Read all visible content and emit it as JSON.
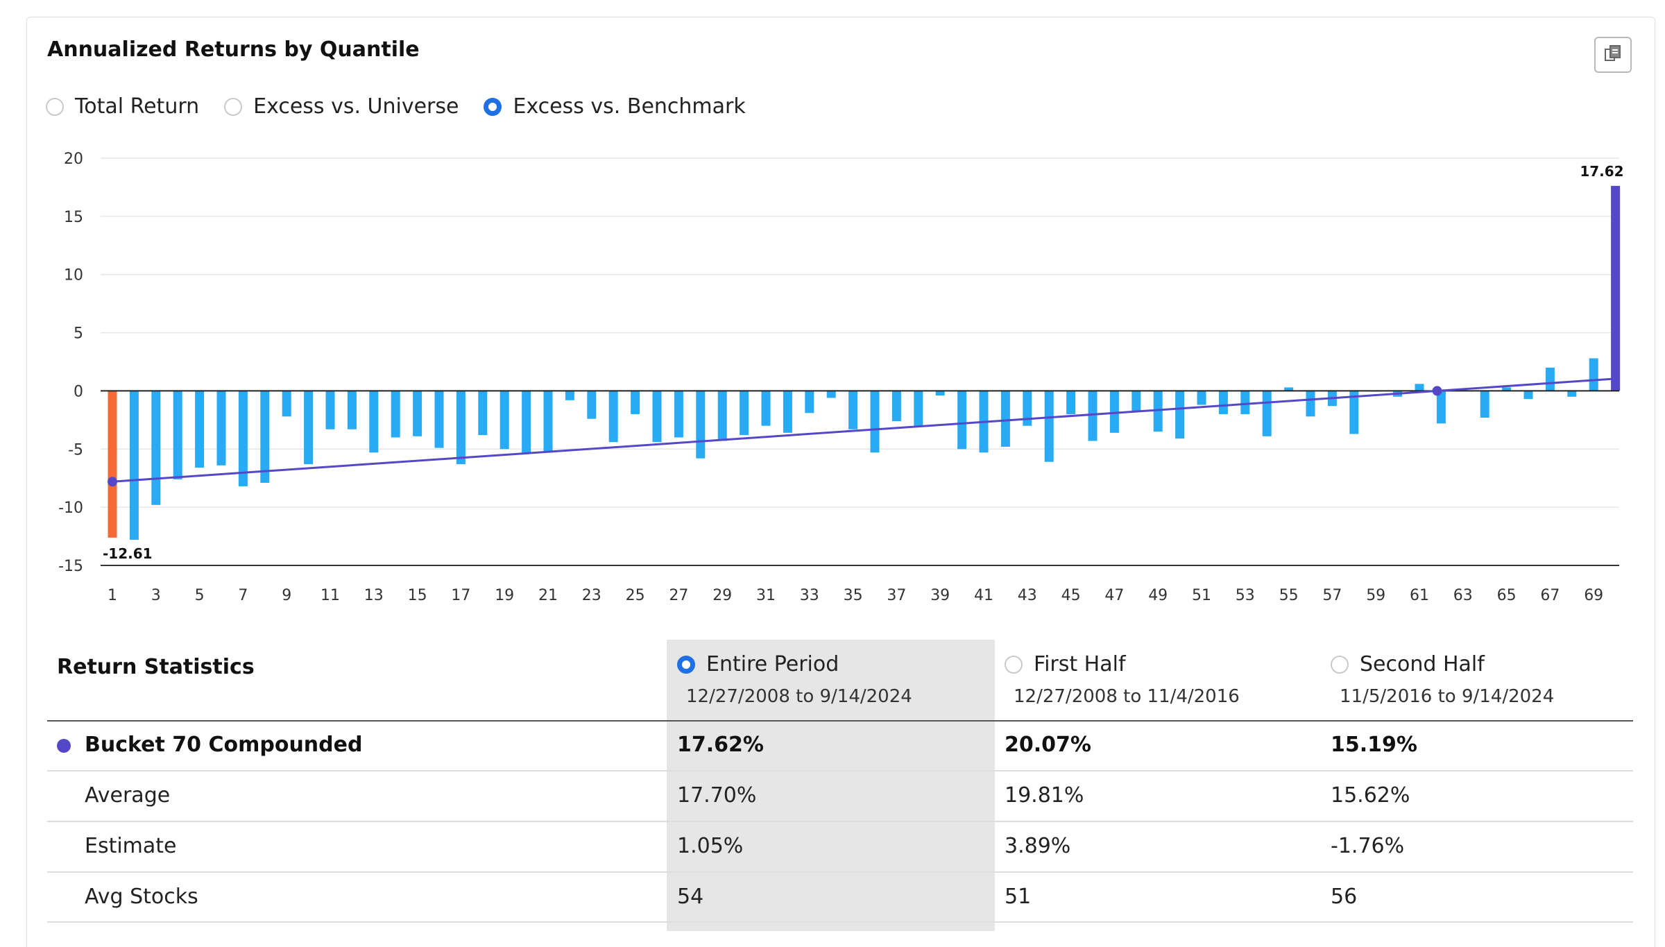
{
  "title": "Annualized Returns by Quantile",
  "export_icon": "copy-export-icon",
  "view_options": [
    {
      "label": "Total Return",
      "selected": false
    },
    {
      "label": "Excess vs. Universe",
      "selected": false
    },
    {
      "label": "Excess vs. Benchmark",
      "selected": true
    }
  ],
  "colors": {
    "bar": "#29aaf5",
    "first_bar": "#f56a36",
    "last_bar": "#5548c8",
    "trend": "#5548c8",
    "radio_selected": "#1f6fe5"
  },
  "chart_data": {
    "type": "bar",
    "x": [
      1,
      2,
      3,
      4,
      5,
      6,
      7,
      8,
      9,
      10,
      11,
      12,
      13,
      14,
      15,
      16,
      17,
      18,
      19,
      20,
      21,
      22,
      23,
      24,
      25,
      26,
      27,
      28,
      29,
      30,
      31,
      32,
      33,
      34,
      35,
      36,
      37,
      38,
      39,
      40,
      41,
      42,
      43,
      44,
      45,
      46,
      47,
      48,
      49,
      50,
      51,
      52,
      53,
      54,
      55,
      56,
      57,
      58,
      59,
      60,
      61,
      62,
      63,
      64,
      65,
      66,
      67,
      68,
      69,
      70
    ],
    "values": [
      -12.61,
      -12.8,
      -9.8,
      -7.6,
      -6.6,
      -6.4,
      -8.2,
      -7.9,
      -2.2,
      -6.3,
      -3.3,
      -3.3,
      -5.3,
      -4.0,
      -3.9,
      -4.9,
      -6.3,
      -3.8,
      -5.0,
      -5.4,
      -5.3,
      -0.8,
      -2.4,
      -4.4,
      -2.0,
      -4.4,
      -4.0,
      -5.8,
      -4.3,
      -3.8,
      -3.0,
      -3.6,
      -1.9,
      -0.6,
      -3.3,
      -5.3,
      -2.6,
      -3.0,
      -0.4,
      -5.0,
      -5.3,
      -4.8,
      -3.0,
      -6.1,
      -2.0,
      -4.3,
      -3.6,
      -1.8,
      -3.5,
      -4.1,
      -1.2,
      -2.0,
      -2.0,
      -3.9,
      0.3,
      -2.2,
      -1.3,
      -3.7,
      0.0,
      -0.5,
      0.6,
      -2.8,
      0.2,
      -2.3,
      0.3,
      -0.7,
      2.0,
      -0.5,
      2.8,
      17.62
    ],
    "data_labels": {
      "first": "-12.61",
      "last": "17.62"
    },
    "trendline": {
      "start": -7.8,
      "end": 1.05
    },
    "x_ticks": [
      1,
      3,
      5,
      7,
      9,
      11,
      13,
      15,
      17,
      19,
      21,
      23,
      25,
      27,
      29,
      31,
      33,
      35,
      37,
      39,
      41,
      43,
      45,
      47,
      49,
      51,
      53,
      55,
      57,
      59,
      61,
      63,
      65,
      67,
      69
    ],
    "y_ticks": [
      20,
      15,
      10,
      5,
      0,
      -5,
      -10,
      -15
    ],
    "ylim": [
      -15,
      20
    ],
    "grid": true,
    "legend": "none"
  },
  "stats": {
    "title": "Return Statistics",
    "periods": [
      {
        "label": "Entire Period",
        "range": "12/27/2008 to 9/14/2024",
        "selected": true
      },
      {
        "label": "First Half",
        "range": "12/27/2008 to 11/4/2016",
        "selected": false
      },
      {
        "label": "Second Half",
        "range": "11/5/2016 to 9/14/2024",
        "selected": false
      }
    ],
    "rows": [
      {
        "label": "Bucket 70 Compounded",
        "values": [
          "17.62%",
          "20.07%",
          "15.19%"
        ],
        "bold": true,
        "dot": true
      },
      {
        "label": "Average",
        "values": [
          "17.70%",
          "19.81%",
          "15.62%"
        ]
      },
      {
        "label": "Estimate",
        "values": [
          "1.05%",
          "3.89%",
          "-1.76%"
        ]
      },
      {
        "label": "Avg Stocks",
        "values": [
          "54",
          "51",
          "56"
        ]
      }
    ]
  }
}
